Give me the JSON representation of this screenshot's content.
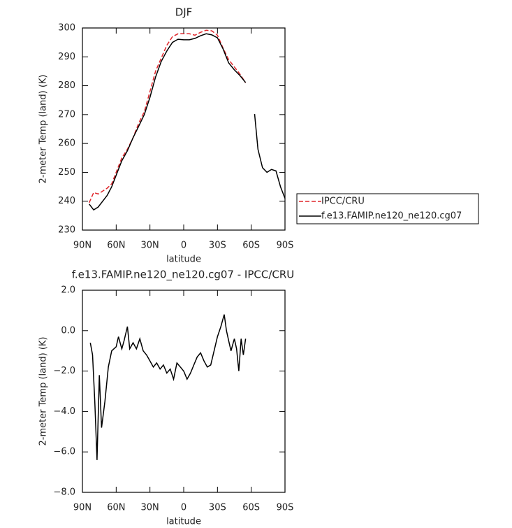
{
  "chart_data": [
    {
      "type": "line",
      "title": "DJF",
      "xlabel": "latitude",
      "ylabel": "2-meter Temp (land) (K)",
      "x": [
        84,
        80,
        76,
        72,
        68,
        64,
        60,
        55,
        50,
        45,
        40,
        35,
        30,
        25,
        20,
        15,
        10,
        5,
        0,
        -5,
        -10,
        -15,
        -20,
        -25,
        -30,
        -35,
        -40,
        -45,
        -50,
        -55,
        -60,
        -63,
        -66,
        -70,
        -74,
        -78,
        -82,
        -86,
        -90
      ],
      "series": [
        {
          "name": "IPCC/CRU",
          "color": "#e0262b",
          "dash": "dashed",
          "values": [
            239.5,
            243,
            242.5,
            243.5,
            244.5,
            246,
            250,
            255,
            258,
            262,
            267,
            271,
            278,
            285,
            289.5,
            294,
            297,
            298,
            298,
            298,
            297.5,
            298.5,
            299.2,
            299,
            297.5,
            293,
            289,
            286.5,
            284,
            281,
            null,
            null,
            null,
            null,
            null,
            null,
            null,
            null,
            null
          ]
        },
        {
          "name": "f.e13.FAMIP.ne120_ne120.cg07",
          "color": "#000000",
          "dash": "solid",
          "values": [
            239,
            237,
            238,
            240,
            242,
            245,
            249,
            254,
            257.5,
            262,
            266,
            270,
            276,
            283,
            288.4,
            292,
            295,
            296.1,
            295.9,
            295.9,
            296.4,
            297.3,
            298,
            297.6,
            296.6,
            292.7,
            287.9,
            285.5,
            283.5,
            281.1,
            null,
            270.2,
            258,
            251.6,
            250,
            251,
            250.5,
            245,
            241
          ]
        }
      ],
      "xlim": [
        90,
        -90
      ],
      "xticks": [
        {
          "value": 90,
          "label": "90N"
        },
        {
          "value": 60,
          "label": "60N"
        },
        {
          "value": 30,
          "label": "30N"
        },
        0,
        {
          "value": -30,
          "label": "30S"
        },
        {
          "value": -60,
          "label": "60S"
        },
        {
          "value": -90,
          "label": "90S"
        }
      ],
      "ylim": [
        230,
        300
      ],
      "yticks": [
        230,
        240,
        250,
        260,
        270,
        280,
        290,
        300
      ],
      "legend": "right"
    },
    {
      "type": "line",
      "title": "f.e13.FAMIP.ne120_ne120.cg07 - IPCC/CRU",
      "xlabel": "latitude",
      "ylabel": "2-meter Temp (land) (K)",
      "x": [
        83,
        81,
        79,
        77,
        75,
        73,
        70,
        67,
        64,
        60,
        58,
        55,
        53,
        50,
        48,
        45,
        42,
        39,
        36,
        33,
        30,
        27,
        24,
        21,
        18,
        15,
        12,
        9,
        6,
        3,
        0,
        -3,
        -6,
        -9,
        -12,
        -15,
        -18,
        -21,
        -24,
        -27,
        -30,
        -33,
        -36,
        -38,
        -40,
        -42,
        -45,
        -47,
        -49,
        -51,
        -53,
        -55
      ],
      "series": [
        {
          "name": "f.e13.FAMIP.ne120_ne120.cg07 - IPCC/CRU",
          "color": "#000000",
          "dash": "solid",
          "values": [
            -0.6,
            -1.2,
            -3.5,
            -6.4,
            -2.2,
            -4.8,
            -3.5,
            -1.8,
            -1.0,
            -0.8,
            -0.3,
            -0.9,
            -0.5,
            0.2,
            -0.9,
            -0.6,
            -0.9,
            -0.4,
            -1.0,
            -1.2,
            -1.5,
            -1.8,
            -1.6,
            -1.9,
            -1.7,
            -2.1,
            -1.9,
            -2.4,
            -1.6,
            -1.8,
            -2.0,
            -2.4,
            -2.1,
            -1.7,
            -1.3,
            -1.1,
            -1.5,
            -1.8,
            -1.7,
            -1.0,
            -0.3,
            0.2,
            0.8,
            0.0,
            -0.5,
            -1.0,
            -0.4,
            -0.9,
            -2.0,
            -0.4,
            -1.2,
            -0.4
          ]
        }
      ],
      "xlim": [
        90,
        -90
      ],
      "xticks": [
        {
          "value": 90,
          "label": "90N"
        },
        {
          "value": 60,
          "label": "60N"
        },
        {
          "value": 30,
          "label": "30N"
        },
        0,
        {
          "value": -30,
          "label": "30S"
        },
        {
          "value": -60,
          "label": "60S"
        },
        {
          "value": -90,
          "label": "90S"
        }
      ],
      "ylim": [
        -8,
        2
      ],
      "yticks": [
        {
          "value": -8,
          "label": "−8.0"
        },
        {
          "value": -6,
          "label": "−6.0"
        },
        {
          "value": -4,
          "label": "−4.0"
        },
        {
          "value": -2,
          "label": "−2.0"
        },
        {
          "value": 0,
          "label": "0.0"
        },
        {
          "value": 2,
          "label": "2.0"
        }
      ]
    }
  ]
}
